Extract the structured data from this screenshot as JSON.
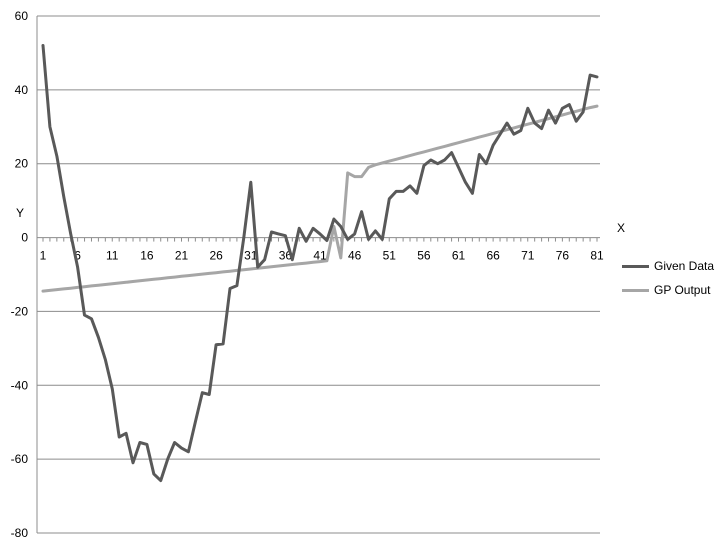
{
  "chart_data": {
    "type": "line",
    "title": "",
    "xlabel": "X",
    "ylabel": "Y",
    "ylim": [
      -80,
      60
    ],
    "yticks": [
      60,
      40,
      20,
      0,
      -20,
      -40,
      -60,
      -80
    ],
    "xlim": [
      1,
      81
    ],
    "xticks": [
      1,
      6,
      11,
      16,
      21,
      26,
      31,
      36,
      41,
      46,
      51,
      56,
      61,
      66,
      71,
      76,
      81
    ],
    "grid": true,
    "legend": "right",
    "series": [
      {
        "name": "Given Data",
        "color": "#595959",
        "x": [
          1,
          2,
          3,
          4,
          5,
          6,
          7,
          8,
          9,
          10,
          11,
          12,
          13,
          14,
          15,
          16,
          17,
          18,
          19,
          20,
          21,
          22,
          23,
          24,
          25,
          26,
          27,
          28,
          29,
          30,
          31,
          32,
          33,
          34,
          35,
          36,
          37,
          38,
          39,
          40,
          41,
          42,
          43,
          44,
          45,
          46,
          47,
          48,
          49,
          50,
          51,
          52,
          53,
          54,
          55,
          56,
          57,
          58,
          59,
          60,
          61,
          62,
          63,
          64,
          65,
          66,
          67,
          68,
          69,
          70,
          71,
          72,
          73,
          74,
          75,
          76,
          77,
          78,
          79,
          80,
          81
        ],
        "y": [
          52,
          30,
          22,
          11,
          1,
          -8,
          -21,
          -22,
          -27,
          -33,
          -41,
          -54,
          -53,
          -61,
          -55.5,
          -56,
          -64,
          -65.8,
          -60,
          -55.5,
          -57,
          -58,
          -50,
          -42,
          -42.5,
          -29,
          -28.8,
          -13.8,
          -13,
          0,
          15,
          -8,
          -6,
          1.5,
          1,
          0.5,
          -6,
          2.5,
          -1,
          2.5,
          1,
          -0.8,
          5,
          3,
          -0.5,
          1,
          7,
          -0.5,
          1.8,
          -0.5,
          10.5,
          12.5,
          12.5,
          14,
          12,
          19.5,
          21,
          20,
          21,
          23,
          19,
          15,
          12,
          22.5,
          20,
          25,
          28,
          31,
          28,
          29,
          35,
          31,
          29.5,
          34.5,
          31,
          35,
          36,
          31.5,
          34,
          44,
          43.5
        ]
      },
      {
        "name": "GP Output",
        "color": "#a6a6a6",
        "x": [
          1,
          2,
          3,
          4,
          5,
          6,
          7,
          8,
          9,
          10,
          11,
          12,
          13,
          14,
          15,
          16,
          17,
          18,
          19,
          20,
          21,
          22,
          23,
          24,
          25,
          26,
          27,
          28,
          29,
          30,
          31,
          32,
          33,
          34,
          35,
          36,
          37,
          38,
          39,
          40,
          41,
          42,
          43,
          44,
          45,
          46,
          47,
          48,
          49,
          50,
          51,
          52,
          53,
          54,
          55,
          56,
          57,
          58,
          59,
          60,
          61,
          62,
          63,
          64,
          65,
          66,
          67,
          68,
          69,
          70,
          71,
          72,
          73,
          74,
          75,
          76,
          77,
          78,
          79,
          80,
          81
        ],
        "y": [
          -14.5,
          -14.3,
          -14.1,
          -13.9,
          -13.7,
          -13.5,
          -13.3,
          -13.1,
          -12.9,
          -12.7,
          -12.5,
          -12.3,
          -12.1,
          -11.9,
          -11.7,
          -11.5,
          -11.3,
          -11.1,
          -10.9,
          -10.7,
          -10.5,
          -10.3,
          -10.1,
          -9.9,
          -9.7,
          -9.5,
          -9.3,
          -9.1,
          -8.9,
          -8.7,
          -8.5,
          -8.3,
          -8.1,
          -7.9,
          -7.7,
          -7.5,
          -7.3,
          -7.1,
          -6.9,
          -6.7,
          -6.5,
          -6.3,
          3,
          -5.5,
          17.5,
          16.5,
          16.5,
          19,
          19.7,
          20.2,
          20.7,
          21.2,
          21.7,
          22.2,
          22.7,
          23.2,
          23.7,
          24.2,
          24.7,
          25.2,
          25.7,
          26.2,
          26.7,
          27.2,
          27.7,
          28.2,
          28.7,
          29.2,
          29.7,
          30.2,
          30.7,
          31.2,
          31.7,
          32.2,
          32.7,
          33.2,
          33.7,
          34.2,
          34.7,
          35.2,
          35.6
        ]
      }
    ]
  }
}
